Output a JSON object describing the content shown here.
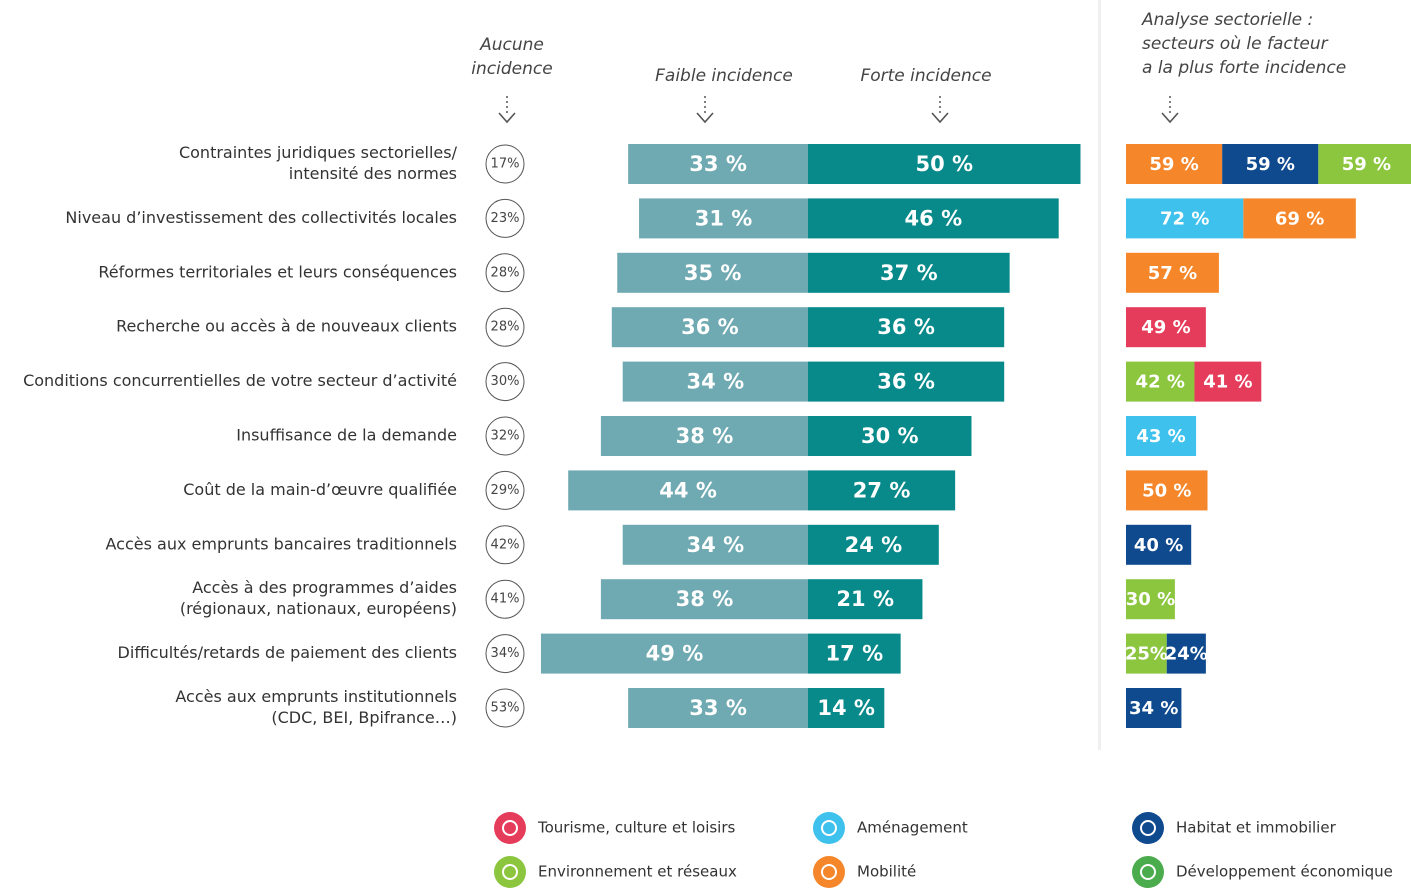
{
  "chart_data": {
    "type": "diverging_bar",
    "categories": [
      [
        "Contraintes juridiques sectorielles/",
        "intensité des normes"
      ],
      [
        "Niveau d’investissement des collectivités locales"
      ],
      [
        "Réformes territoriales et leurs conséquences"
      ],
      [
        "Recherche ou accès à de nouveaux clients"
      ],
      [
        "Conditions concurrentielles de votre secteur d’activité"
      ],
      [
        "Insuffisance de la demande"
      ],
      [
        "Coût de la main-d’œuvre qualifiée"
      ],
      [
        "Accès aux emprunts bancaires traditionnels"
      ],
      [
        "Accès à des programmes d’aides",
        "(régionaux, nationaux, européens)"
      ],
      [
        "Difficultés/retards de paiement des clients"
      ],
      [
        "Accès aux emprunts institutionnels",
        "(CDC, BEI, Bpifrance…)"
      ]
    ],
    "series": [
      {
        "name": [
          "Aucune",
          "incidence"
        ],
        "values": [
          17,
          23,
          28,
          28,
          30,
          32,
          29,
          42,
          41,
          34,
          53
        ],
        "value_labels": [
          "17%",
          "23%",
          "28%",
          "28%",
          "30%",
          "32%",
          "29%",
          "42%",
          "41%",
          "34%",
          "53%"
        ]
      },
      {
        "name": [
          "Faible incidence"
        ],
        "color": "#6fa9b1",
        "values": [
          33,
          31,
          35,
          36,
          34,
          38,
          44,
          34,
          38,
          49,
          33
        ],
        "value_labels": [
          "33 %",
          "31 %",
          "35 %",
          "36 %",
          "34 %",
          "38 %",
          "44 %",
          "34 %",
          "38 %",
          "49 %",
          "33 %"
        ]
      },
      {
        "name": [
          "Forte incidence"
        ],
        "color": "#08898a",
        "values": [
          50,
          46,
          37,
          36,
          36,
          30,
          27,
          24,
          21,
          17,
          14
        ],
        "value_labels": [
          "50 %",
          "46 %",
          "37 %",
          "36 %",
          "36 %",
          "30 %",
          "27 %",
          "24 %",
          "21 %",
          "17 %",
          "14 %"
        ]
      }
    ],
    "sector_analysis": {
      "title": [
        "Analyse sectorielle :",
        "secteurs où le facteur",
        "a la plus forte incidence"
      ],
      "rows": [
        [
          {
            "color": "#f5862a",
            "value": 59,
            "label": "59 %"
          },
          {
            "color": "#0f4a8e",
            "value": 59,
            "label": "59 %"
          },
          {
            "color": "#8cc63f",
            "value": 59,
            "label": "59 %"
          }
        ],
        [
          {
            "color": "#3fc1ee",
            "value": 72,
            "label": "72 %"
          },
          {
            "color": "#f5862a",
            "value": 69,
            "label": "69 %"
          }
        ],
        [
          {
            "color": "#f5862a",
            "value": 57,
            "label": "57 %"
          }
        ],
        [
          {
            "color": "#e63c5b",
            "value": 49,
            "label": "49 %"
          }
        ],
        [
          {
            "color": "#8cc63f",
            "value": 42,
            "label": "42 %"
          },
          {
            "color": "#e63c5b",
            "value": 41,
            "label": "41 %"
          }
        ],
        [
          {
            "color": "#3fc1ee",
            "value": 43,
            "label": "43 %"
          }
        ],
        [
          {
            "color": "#f5862a",
            "value": 50,
            "label": "50 %"
          }
        ],
        [
          {
            "color": "#0f4a8e",
            "value": 40,
            "label": "40 %"
          }
        ],
        [
          {
            "color": "#8cc63f",
            "value": 30,
            "label": "30 %"
          }
        ],
        [
          {
            "color": "#8cc63f",
            "value": 25,
            "label": "25%"
          },
          {
            "color": "#0f4a8e",
            "value": 24,
            "label": "24%"
          }
        ],
        [
          {
            "color": "#0f4a8e",
            "value": 34,
            "label": "34 %"
          }
        ]
      ]
    },
    "sectors": [
      {
        "name": "Tourisme, culture et loisirs",
        "color": "#e63c5b"
      },
      {
        "name": "Environnement et réseaux",
        "color": "#8cc63f"
      },
      {
        "name": "Aménagement",
        "color": "#3fc1ee"
      },
      {
        "name": "Mobilité",
        "color": "#f5862a"
      },
      {
        "name": "Habitat et immobilier",
        "color": "#0f4a8e"
      },
      {
        "name": "Développement économique",
        "color": "#4aac4c"
      }
    ]
  }
}
